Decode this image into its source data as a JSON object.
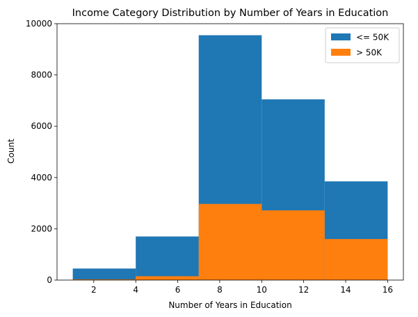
{
  "chart_data": {
    "type": "bar",
    "title": "Income Category Distribution by Number of Years in Education",
    "xlabel": "Number of Years in Education",
    "ylabel": "Count",
    "xlim": [
      0.25,
      16.75
    ],
    "ylim": [
      0,
      10000
    ],
    "x_ticks": [
      2,
      4,
      6,
      8,
      10,
      12,
      14,
      16
    ],
    "y_ticks": [
      0,
      2000,
      4000,
      6000,
      8000,
      10000
    ],
    "grid": false,
    "legend_position": "top-right",
    "series": [
      {
        "name": "<= 50K",
        "color": "#1f77b4",
        "bins": [
          {
            "x0": 1.0,
            "x1": 4.0,
            "value": 450
          },
          {
            "x0": 4.0,
            "x1": 7.0,
            "value": 1700
          },
          {
            "x0": 7.0,
            "x1": 10.0,
            "value": 9550
          },
          {
            "x0": 10.0,
            "x1": 13.0,
            "value": 7050
          },
          {
            "x0": 13.0,
            "x1": 16.0,
            "value": 3850
          }
        ]
      },
      {
        "name": "> 50K",
        "color": "#ff7f0e",
        "bins": [
          {
            "x0": 1.0,
            "x1": 4.0,
            "value": 30
          },
          {
            "x0": 4.0,
            "x1": 7.0,
            "value": 150
          },
          {
            "x0": 7.0,
            "x1": 10.0,
            "value": 2970
          },
          {
            "x0": 10.0,
            "x1": 13.0,
            "value": 2720
          },
          {
            "x0": 13.0,
            "x1": 16.0,
            "value": 1600
          }
        ]
      }
    ]
  }
}
